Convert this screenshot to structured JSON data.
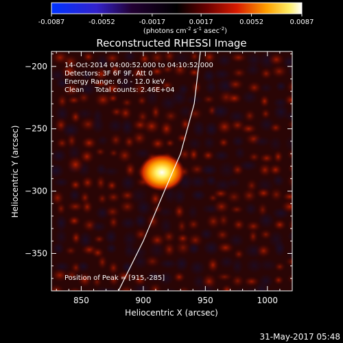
{
  "colorbar": {
    "ticks": [
      "-0.0087",
      "-0.0052",
      "-0.0017",
      "0.0017",
      "0.0052",
      "0.0087"
    ],
    "tick_values": [
      -0.0087,
      -0.0052,
      -0.0017,
      0.0017,
      0.0052,
      0.0087
    ],
    "unit_main": "(photons cm",
    "unit_exp1": "-2",
    "unit_mid": " s",
    "unit_exp2": "-1",
    "unit_tail": " asec",
    "unit_exp3": "-2",
    "unit_close": ")"
  },
  "chart_data": {
    "type": "heatmap",
    "title": "Reconstructed RHESSI Image",
    "xlabel": "Heliocentric X (arcsec)",
    "ylabel": "Heliocentric Y (arcsec)",
    "xlim": [
      826,
      1020
    ],
    "ylim": [
      -380,
      -188
    ],
    "xticks": [
      850,
      900,
      950,
      1000
    ],
    "yticks": [
      -200,
      -250,
      -300,
      -350
    ],
    "xtick_labels": [
      "850",
      "900",
      "950",
      "1000"
    ],
    "ytick_labels": [
      "−200",
      "−250",
      "−300",
      "−350"
    ],
    "peak": {
      "x": 915,
      "y": -285
    },
    "limb_points": [
      [
        946,
        -188
      ],
      [
        941,
        -230
      ],
      [
        930,
        -270
      ],
      [
        917,
        -300
      ],
      [
        900,
        -340
      ],
      [
        880,
        -380
      ]
    ],
    "info_lines": [
      "14-Oct-2014 04:00:52.000 to 04:10:52.000",
      "Detectors: 3F 6F 9F, Att 0",
      "Energy Range: 6.0 - 12.0 keV",
      "Clean     Total counts: 2.46E+04"
    ],
    "peak_label": "Position of Peak = [915,-285]",
    "colormap": "blue-black-red-yellow-white"
  },
  "timestamp": "31-May-2017 05:48"
}
